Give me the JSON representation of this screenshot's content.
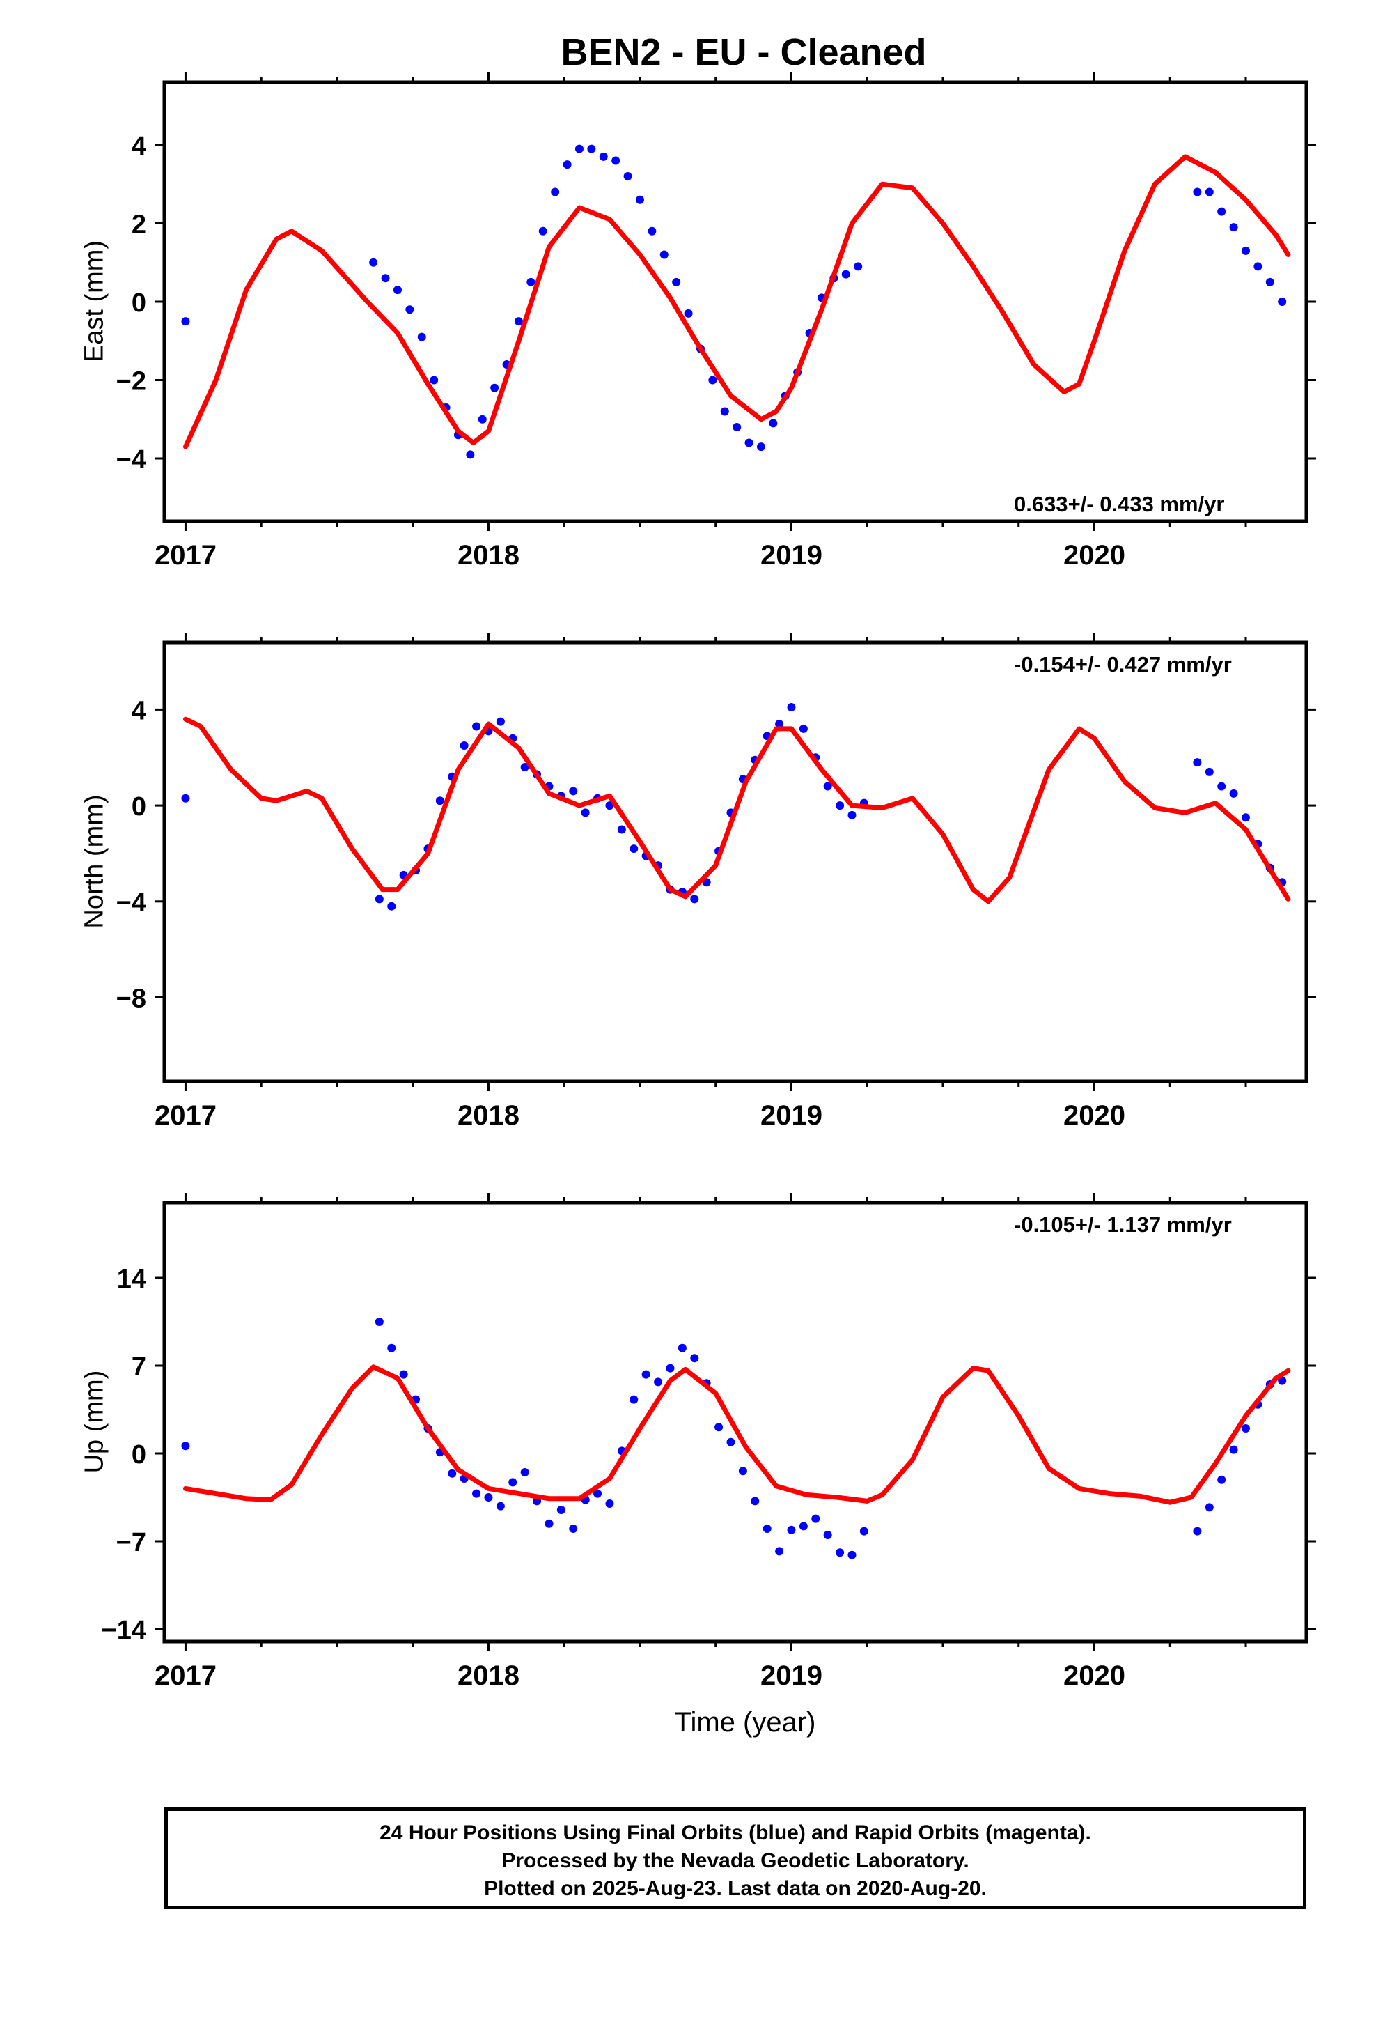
{
  "title": "BEN2  - EU - Cleaned",
  "xlabel": "Time (year)",
  "footer": {
    "line1": "24 Hour Positions Using Final Orbits (blue) and Rapid Orbits (magenta).",
    "line2": "Processed by the Nevada Geodetic Laboratory.",
    "line3": "Plotted on 2025-Aug-23. Last data on 2020-Aug-20."
  },
  "colors": {
    "points": "#0000ff",
    "model": "#ff0000",
    "frame": "#000000"
  },
  "chart_data": [
    {
      "type": "scatter",
      "component": "east",
      "ylabel": "East (mm)",
      "rate": "0.633+/- 0.433 mm/yr",
      "xlim": [
        2016.93,
        2020.7
      ],
      "ylim": [
        -5.6,
        5.6
      ],
      "yticks": [
        -4,
        -2,
        0,
        2,
        4
      ],
      "xticks": [
        2017,
        2018,
        2019,
        2020
      ],
      "model": [
        [
          2017.0,
          -3.7
        ],
        [
          2017.1,
          -2.0
        ],
        [
          2017.2,
          0.3
        ],
        [
          2017.3,
          1.6
        ],
        [
          2017.35,
          1.8
        ],
        [
          2017.45,
          1.3
        ],
        [
          2017.6,
          0.0
        ],
        [
          2017.7,
          -0.8
        ],
        [
          2017.8,
          -2.1
        ],
        [
          2017.9,
          -3.3
        ],
        [
          2017.95,
          -3.6
        ],
        [
          2018.0,
          -3.3
        ],
        [
          2018.1,
          -1.0
        ],
        [
          2018.2,
          1.4
        ],
        [
          2018.3,
          2.4
        ],
        [
          2018.4,
          2.1
        ],
        [
          2018.5,
          1.2
        ],
        [
          2018.6,
          0.1
        ],
        [
          2018.7,
          -1.2
        ],
        [
          2018.8,
          -2.4
        ],
        [
          2018.9,
          -3.0
        ],
        [
          2018.95,
          -2.8
        ],
        [
          2019.0,
          -2.2
        ],
        [
          2019.1,
          -0.2
        ],
        [
          2019.2,
          2.0
        ],
        [
          2019.3,
          3.0
        ],
        [
          2019.4,
          2.9
        ],
        [
          2019.5,
          2.0
        ],
        [
          2019.6,
          0.9
        ],
        [
          2019.7,
          -0.3
        ],
        [
          2019.8,
          -1.6
        ],
        [
          2019.9,
          -2.3
        ],
        [
          2019.95,
          -2.1
        ],
        [
          2020.0,
          -1.0
        ],
        [
          2020.1,
          1.3
        ],
        [
          2020.2,
          3.0
        ],
        [
          2020.3,
          3.7
        ],
        [
          2020.4,
          3.3
        ],
        [
          2020.5,
          2.6
        ],
        [
          2020.6,
          1.7
        ],
        [
          2020.64,
          1.2
        ]
      ],
      "points": [
        [
          2017.0,
          -0.5
        ],
        [
          2017.62,
          1.0
        ],
        [
          2017.66,
          0.6
        ],
        [
          2017.7,
          0.3
        ],
        [
          2017.74,
          -0.2
        ],
        [
          2017.78,
          -0.9
        ],
        [
          2017.82,
          -2.0
        ],
        [
          2017.86,
          -2.7
        ],
        [
          2017.9,
          -3.4
        ],
        [
          2017.94,
          -3.9
        ],
        [
          2017.98,
          -3.0
        ],
        [
          2018.02,
          -2.2
        ],
        [
          2018.06,
          -1.6
        ],
        [
          2018.1,
          -0.5
        ],
        [
          2018.14,
          0.5
        ],
        [
          2018.18,
          1.8
        ],
        [
          2018.22,
          2.8
        ],
        [
          2018.26,
          3.5
        ],
        [
          2018.3,
          3.9
        ],
        [
          2018.34,
          3.9
        ],
        [
          2018.38,
          3.7
        ],
        [
          2018.42,
          3.6
        ],
        [
          2018.46,
          3.2
        ],
        [
          2018.5,
          2.6
        ],
        [
          2018.54,
          1.8
        ],
        [
          2018.58,
          1.2
        ],
        [
          2018.62,
          0.5
        ],
        [
          2018.66,
          -0.3
        ],
        [
          2018.7,
          -1.2
        ],
        [
          2018.74,
          -2.0
        ],
        [
          2018.78,
          -2.8
        ],
        [
          2018.82,
          -3.2
        ],
        [
          2018.86,
          -3.6
        ],
        [
          2018.9,
          -3.7
        ],
        [
          2018.94,
          -3.1
        ],
        [
          2018.98,
          -2.4
        ],
        [
          2019.02,
          -1.8
        ],
        [
          2019.06,
          -0.8
        ],
        [
          2019.1,
          0.1
        ],
        [
          2019.14,
          0.6
        ],
        [
          2019.18,
          0.7
        ],
        [
          2019.22,
          0.9
        ],
        [
          2020.34,
          2.8
        ],
        [
          2020.38,
          2.8
        ],
        [
          2020.42,
          2.3
        ],
        [
          2020.46,
          1.9
        ],
        [
          2020.5,
          1.3
        ],
        [
          2020.54,
          0.9
        ],
        [
          2020.58,
          0.5
        ],
        [
          2020.62,
          0.0
        ]
      ]
    },
    {
      "type": "scatter",
      "component": "north",
      "ylabel": "North (mm)",
      "rate": "-0.154+/- 0.427 mm/yr",
      "xlim": [
        2016.93,
        2020.7
      ],
      "ylim": [
        -11.5,
        6.8
      ],
      "yticks": [
        -8,
        -4,
        0,
        4
      ],
      "xticks": [
        2017,
        2018,
        2019,
        2020
      ],
      "model": [
        [
          2017.0,
          3.6
        ],
        [
          2017.05,
          3.3
        ],
        [
          2017.15,
          1.5
        ],
        [
          2017.25,
          0.3
        ],
        [
          2017.3,
          0.2
        ],
        [
          2017.4,
          0.6
        ],
        [
          2017.45,
          0.3
        ],
        [
          2017.55,
          -1.8
        ],
        [
          2017.65,
          -3.5
        ],
        [
          2017.7,
          -3.5
        ],
        [
          2017.8,
          -2.0
        ],
        [
          2017.9,
          1.5
        ],
        [
          2018.0,
          3.4
        ],
        [
          2018.1,
          2.4
        ],
        [
          2018.2,
          0.5
        ],
        [
          2018.3,
          0.0
        ],
        [
          2018.4,
          0.4
        ],
        [
          2018.5,
          -1.5
        ],
        [
          2018.6,
          -3.5
        ],
        [
          2018.65,
          -3.8
        ],
        [
          2018.75,
          -2.5
        ],
        [
          2018.85,
          1.0
        ],
        [
          2018.95,
          3.2
        ],
        [
          2019.0,
          3.2
        ],
        [
          2019.1,
          1.5
        ],
        [
          2019.2,
          0.0
        ],
        [
          2019.3,
          -0.1
        ],
        [
          2019.4,
          0.3
        ],
        [
          2019.5,
          -1.2
        ],
        [
          2019.6,
          -3.5
        ],
        [
          2019.65,
          -4.0
        ],
        [
          2019.72,
          -3.0
        ],
        [
          2019.85,
          1.5
        ],
        [
          2019.95,
          3.2
        ],
        [
          2020.0,
          2.8
        ],
        [
          2020.1,
          1.0
        ],
        [
          2020.2,
          -0.1
        ],
        [
          2020.3,
          -0.3
        ],
        [
          2020.4,
          0.1
        ],
        [
          2020.5,
          -1.0
        ],
        [
          2020.64,
          -3.9
        ]
      ],
      "points": [
        [
          2017.0,
          0.3
        ],
        [
          2017.64,
          -3.9
        ],
        [
          2017.68,
          -4.2
        ],
        [
          2017.72,
          -2.9
        ],
        [
          2017.76,
          -2.7
        ],
        [
          2017.8,
          -1.8
        ],
        [
          2017.84,
          0.2
        ],
        [
          2017.88,
          1.2
        ],
        [
          2017.92,
          2.5
        ],
        [
          2017.96,
          3.3
        ],
        [
          2018.0,
          3.1
        ],
        [
          2018.04,
          3.5
        ],
        [
          2018.08,
          2.8
        ],
        [
          2018.12,
          1.6
        ],
        [
          2018.16,
          1.3
        ],
        [
          2018.2,
          0.8
        ],
        [
          2018.24,
          0.4
        ],
        [
          2018.28,
          0.6
        ],
        [
          2018.32,
          -0.3
        ],
        [
          2018.36,
          0.3
        ],
        [
          2018.4,
          0.0
        ],
        [
          2018.44,
          -1.0
        ],
        [
          2018.48,
          -1.8
        ],
        [
          2018.52,
          -2.1
        ],
        [
          2018.56,
          -2.5
        ],
        [
          2018.6,
          -3.5
        ],
        [
          2018.64,
          -3.6
        ],
        [
          2018.68,
          -3.9
        ],
        [
          2018.72,
          -3.2
        ],
        [
          2018.76,
          -1.9
        ],
        [
          2018.8,
          -0.3
        ],
        [
          2018.84,
          1.1
        ],
        [
          2018.88,
          1.9
        ],
        [
          2018.92,
          2.9
        ],
        [
          2018.96,
          3.4
        ],
        [
          2019.0,
          4.1
        ],
        [
          2019.04,
          3.2
        ],
        [
          2019.08,
          2.0
        ],
        [
          2019.12,
          0.8
        ],
        [
          2019.16,
          0.0
        ],
        [
          2019.2,
          -0.4
        ],
        [
          2019.24,
          0.1
        ],
        [
          2020.34,
          1.8
        ],
        [
          2020.38,
          1.4
        ],
        [
          2020.42,
          0.8
        ],
        [
          2020.46,
          0.5
        ],
        [
          2020.5,
          -0.5
        ],
        [
          2020.54,
          -1.6
        ],
        [
          2020.58,
          -2.6
        ],
        [
          2020.62,
          -3.2
        ]
      ]
    },
    {
      "type": "scatter",
      "component": "up",
      "ylabel": "Up (mm)",
      "rate": "-0.105+/- 1.137 mm/yr",
      "xlim": [
        2016.93,
        2020.7
      ],
      "ylim": [
        -15,
        20
      ],
      "yticks": [
        -14,
        -7,
        0,
        7,
        14
      ],
      "xticks": [
        2017,
        2018,
        2019,
        2020
      ],
      "model": [
        [
          2017.0,
          -2.8
        ],
        [
          2017.1,
          -3.2
        ],
        [
          2017.2,
          -3.6
        ],
        [
          2017.28,
          -3.7
        ],
        [
          2017.35,
          -2.5
        ],
        [
          2017.45,
          1.5
        ],
        [
          2017.55,
          5.2
        ],
        [
          2017.62,
          6.9
        ],
        [
          2017.7,
          6.0
        ],
        [
          2017.8,
          2.0
        ],
        [
          2017.9,
          -1.3
        ],
        [
          2018.0,
          -2.8
        ],
        [
          2018.1,
          -3.2
        ],
        [
          2018.2,
          -3.6
        ],
        [
          2018.3,
          -3.6
        ],
        [
          2018.4,
          -2.0
        ],
        [
          2018.5,
          2.0
        ],
        [
          2018.6,
          5.8
        ],
        [
          2018.65,
          6.7
        ],
        [
          2018.75,
          4.8
        ],
        [
          2018.85,
          0.5
        ],
        [
          2018.95,
          -2.6
        ],
        [
          2019.05,
          -3.3
        ],
        [
          2019.15,
          -3.5
        ],
        [
          2019.25,
          -3.8
        ],
        [
          2019.3,
          -3.3
        ],
        [
          2019.4,
          -0.5
        ],
        [
          2019.5,
          4.5
        ],
        [
          2019.6,
          6.8
        ],
        [
          2019.65,
          6.6
        ],
        [
          2019.75,
          3.0
        ],
        [
          2019.85,
          -1.2
        ],
        [
          2019.95,
          -2.8
        ],
        [
          2020.05,
          -3.2
        ],
        [
          2020.15,
          -3.4
        ],
        [
          2020.25,
          -3.9
        ],
        [
          2020.32,
          -3.5
        ],
        [
          2020.4,
          -0.8
        ],
        [
          2020.5,
          3.0
        ],
        [
          2020.6,
          6.0
        ],
        [
          2020.64,
          6.6
        ]
      ],
      "points": [
        [
          2017.0,
          0.6
        ],
        [
          2017.64,
          10.5
        ],
        [
          2017.68,
          8.4
        ],
        [
          2017.72,
          6.3
        ],
        [
          2017.76,
          4.3
        ],
        [
          2017.8,
          2.0
        ],
        [
          2017.84,
          0.1
        ],
        [
          2017.88,
          -1.6
        ],
        [
          2017.92,
          -2.0
        ],
        [
          2017.96,
          -3.2
        ],
        [
          2018.0,
          -3.5
        ],
        [
          2018.04,
          -4.2
        ],
        [
          2018.08,
          -2.3
        ],
        [
          2018.12,
          -1.5
        ],
        [
          2018.16,
          -3.8
        ],
        [
          2018.2,
          -5.6
        ],
        [
          2018.24,
          -4.5
        ],
        [
          2018.28,
          -6.0
        ],
        [
          2018.32,
          -3.7
        ],
        [
          2018.36,
          -3.2
        ],
        [
          2018.4,
          -4.0
        ],
        [
          2018.44,
          0.2
        ],
        [
          2018.48,
          4.3
        ],
        [
          2018.52,
          6.3
        ],
        [
          2018.56,
          5.7
        ],
        [
          2018.6,
          6.8
        ],
        [
          2018.64,
          8.4
        ],
        [
          2018.68,
          7.6
        ],
        [
          2018.72,
          5.6
        ],
        [
          2018.76,
          2.1
        ],
        [
          2018.8,
          0.9
        ],
        [
          2018.84,
          -1.4
        ],
        [
          2018.88,
          -3.8
        ],
        [
          2018.92,
          -6.0
        ],
        [
          2018.96,
          -7.8
        ],
        [
          2019.0,
          -6.1
        ],
        [
          2019.04,
          -5.8
        ],
        [
          2019.08,
          -5.2
        ],
        [
          2019.12,
          -6.5
        ],
        [
          2019.16,
          -7.9
        ],
        [
          2019.2,
          -8.1
        ],
        [
          2019.24,
          -6.2
        ],
        [
          2020.34,
          -6.2
        ],
        [
          2020.38,
          -4.3
        ],
        [
          2020.42,
          -2.1
        ],
        [
          2020.46,
          0.3
        ],
        [
          2020.5,
          2.0
        ],
        [
          2020.54,
          3.9
        ],
        [
          2020.58,
          5.5
        ],
        [
          2020.62,
          5.8
        ]
      ]
    }
  ]
}
